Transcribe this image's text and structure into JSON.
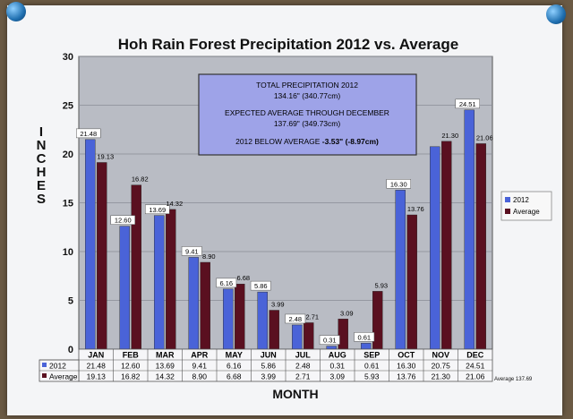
{
  "chart_data": {
    "type": "bar",
    "title": "Hoh Rain Forest Precipitation 2012 vs. Average",
    "xlabel": "MONTH",
    "ylabel": "INCHES",
    "ylim": [
      0,
      30
    ],
    "yticks": [
      0,
      5,
      10,
      15,
      20,
      25,
      30
    ],
    "grid": true,
    "legend_position": "right",
    "categories": [
      "JAN",
      "FEB",
      "MAR",
      "APR",
      "MAY",
      "JUN",
      "JUL",
      "AUG",
      "SEP",
      "OCT",
      "NOV",
      "DEC"
    ],
    "series": [
      {
        "name": "2012",
        "color": "#4a63d8",
        "values": [
          21.48,
          12.6,
          13.69,
          9.41,
          6.16,
          5.86,
          2.48,
          0.31,
          0.61,
          16.3,
          20.75,
          24.51
        ],
        "labels": [
          "21.48",
          "12.60",
          "13.69",
          "9.41",
          "6.16",
          "5.86",
          "2.48",
          "0.31",
          "0.61",
          "16.30",
          "20.75",
          "24.51"
        ]
      },
      {
        "name": "Average",
        "color": "#5a1020",
        "values": [
          19.13,
          16.82,
          14.32,
          8.9,
          6.68,
          3.99,
          2.71,
          3.09,
          5.93,
          13.76,
          21.3,
          21.06
        ],
        "labels": [
          "19.13",
          "16.82",
          "14.32",
          "8.90",
          "6.68",
          "3.99",
          "2.71",
          "3.09",
          "5.93",
          "13.76",
          "21.30",
          "21.06"
        ]
      }
    ],
    "bar_labels_shown": {
      "2012": [
        "21.48",
        "12.60",
        "13.69",
        "9.41",
        "6.16",
        "5.86",
        "2.48",
        "0.31",
        "0.61",
        "16.30",
        "",
        "24.51"
      ],
      "Average": [
        "19.13",
        "16.82",
        "14.32",
        "8.90",
        "6.68",
        "3.99",
        "2.71",
        "3.09",
        "5.93",
        "13.76",
        "21.30",
        "21.06"
      ]
    },
    "annotation": {
      "line1": "TOTAL PRECIPITATION 2012",
      "line2": "134.16\" (340.77cm)",
      "line3": "EXPECTED AVERAGE THROUGH DECEMBER",
      "line4": "137.69\" (349.73cm)",
      "line5a": "2012  BELOW AVERAGE ",
      "line5b": "-3.53\" (-8.97cm)"
    },
    "table_note": "Average 137.69"
  },
  "colors": {
    "plot_bg": "#b9bcc4",
    "box_bg": "#9ea3e8",
    "paper": "#f4f5f7"
  }
}
